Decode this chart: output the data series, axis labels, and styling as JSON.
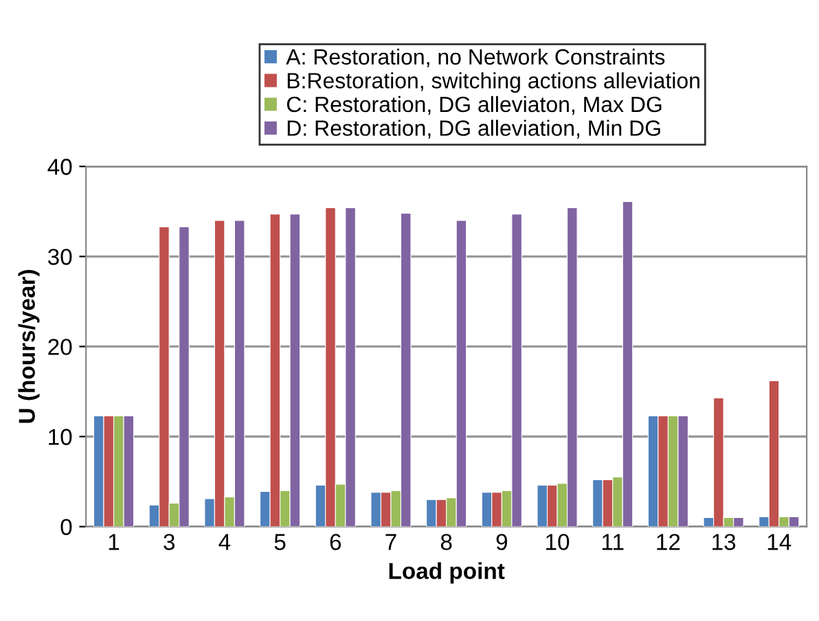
{
  "chart_data": {
    "type": "bar",
    "xlabel": "Load point",
    "ylabel": "U (hours/year)",
    "categories": [
      "1",
      "3",
      "4",
      "5",
      "6",
      "7",
      "8",
      "9",
      "10",
      "11",
      "12",
      "13",
      "14"
    ],
    "series": [
      {
        "name": "A: Restoration, no Network Constraints",
        "color": "#4f81bd",
        "values": [
          12.3,
          2.4,
          3.1,
          3.9,
          4.6,
          3.8,
          3.0,
          3.8,
          4.6,
          5.2,
          12.3,
          1.0,
          1.1
        ]
      },
      {
        "name": "B:Restoration, switching actions alleviation",
        "color": "#c0504d",
        "values": [
          12.3,
          33.3,
          34.0,
          34.7,
          35.4,
          3.8,
          3.0,
          3.8,
          4.6,
          5.2,
          12.3,
          14.3,
          16.2
        ]
      },
      {
        "name": "C: Restoration, DG alleviaton, Max DG",
        "color": "#9bbb59",
        "values": [
          12.3,
          2.6,
          3.3,
          4.0,
          4.7,
          4.0,
          3.2,
          4.0,
          4.8,
          5.5,
          12.3,
          1.0,
          1.1
        ]
      },
      {
        "name": "D: Restoration, DG alleviation, Min DG",
        "color": "#8064a2",
        "values": [
          12.3,
          33.3,
          34.0,
          34.7,
          35.4,
          34.8,
          34.0,
          34.7,
          35.4,
          36.1,
          12.3,
          1.0,
          1.1
        ]
      }
    ],
    "ylim": [
      0,
      40
    ],
    "yticks": [
      0,
      10,
      20,
      30,
      40
    ],
    "grid": "y",
    "legend": "top"
  }
}
